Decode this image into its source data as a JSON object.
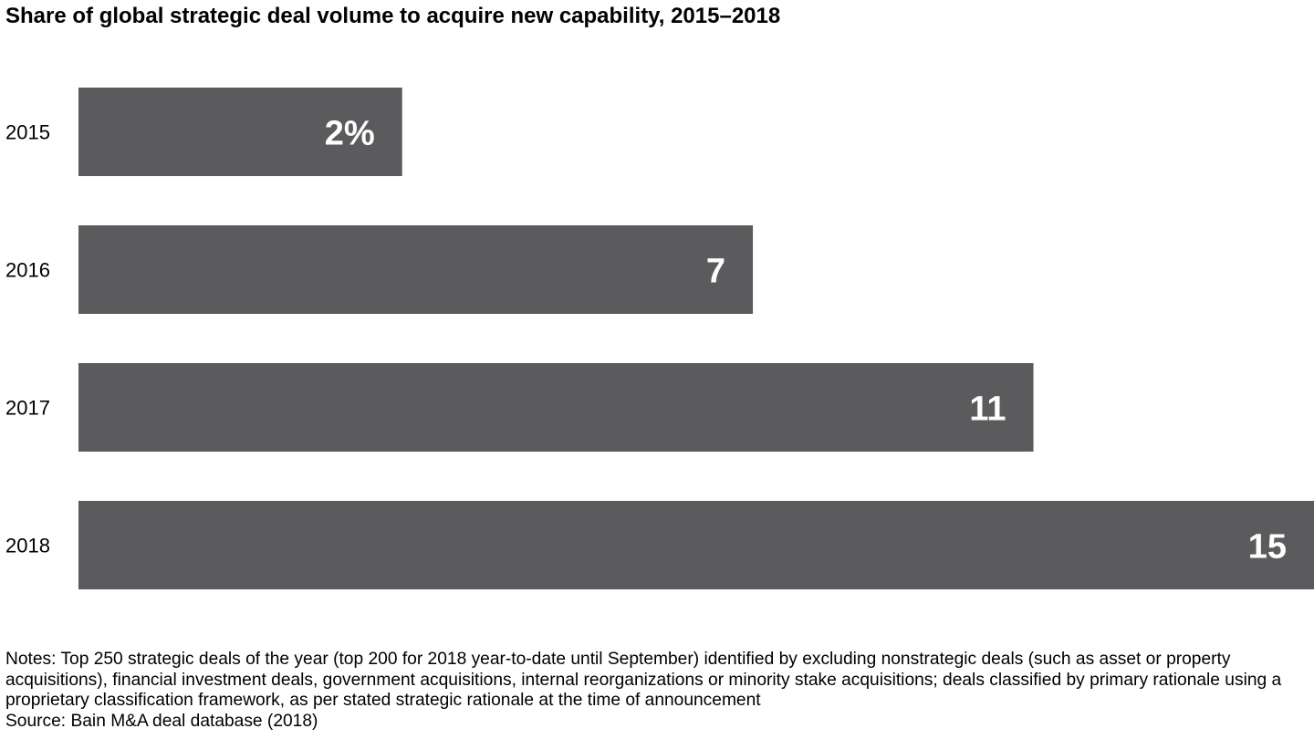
{
  "chart_data": {
    "type": "bar",
    "orientation": "horizontal",
    "title": "Share of global strategic deal volume to acquire new capability, 2015–2018",
    "categories": [
      "2015",
      "2016",
      "2017",
      "2018"
    ],
    "values": [
      2,
      7,
      11,
      15
    ],
    "data_labels": [
      "2%",
      "7",
      "11",
      "15"
    ],
    "unit": "%",
    "xlabel": "",
    "ylabel": "",
    "grid": false,
    "legend": "none",
    "bar_color": "#5b5b5d",
    "label_color": "#ffffff"
  },
  "notes": "Notes: Top 250 strategic deals of the year (top 200 for 2018 year-to-date until September) identified by excluding nonstrategic deals (such as asset or property acquisitions), financial investment deals, government acquisitions, internal reorganizations or minority stake acquisitions; deals classified by primary rationale using a proprietary classification framework, as per stated strategic rationale at the time of announcement",
  "source": "Source: Bain M&A deal database (2018)"
}
